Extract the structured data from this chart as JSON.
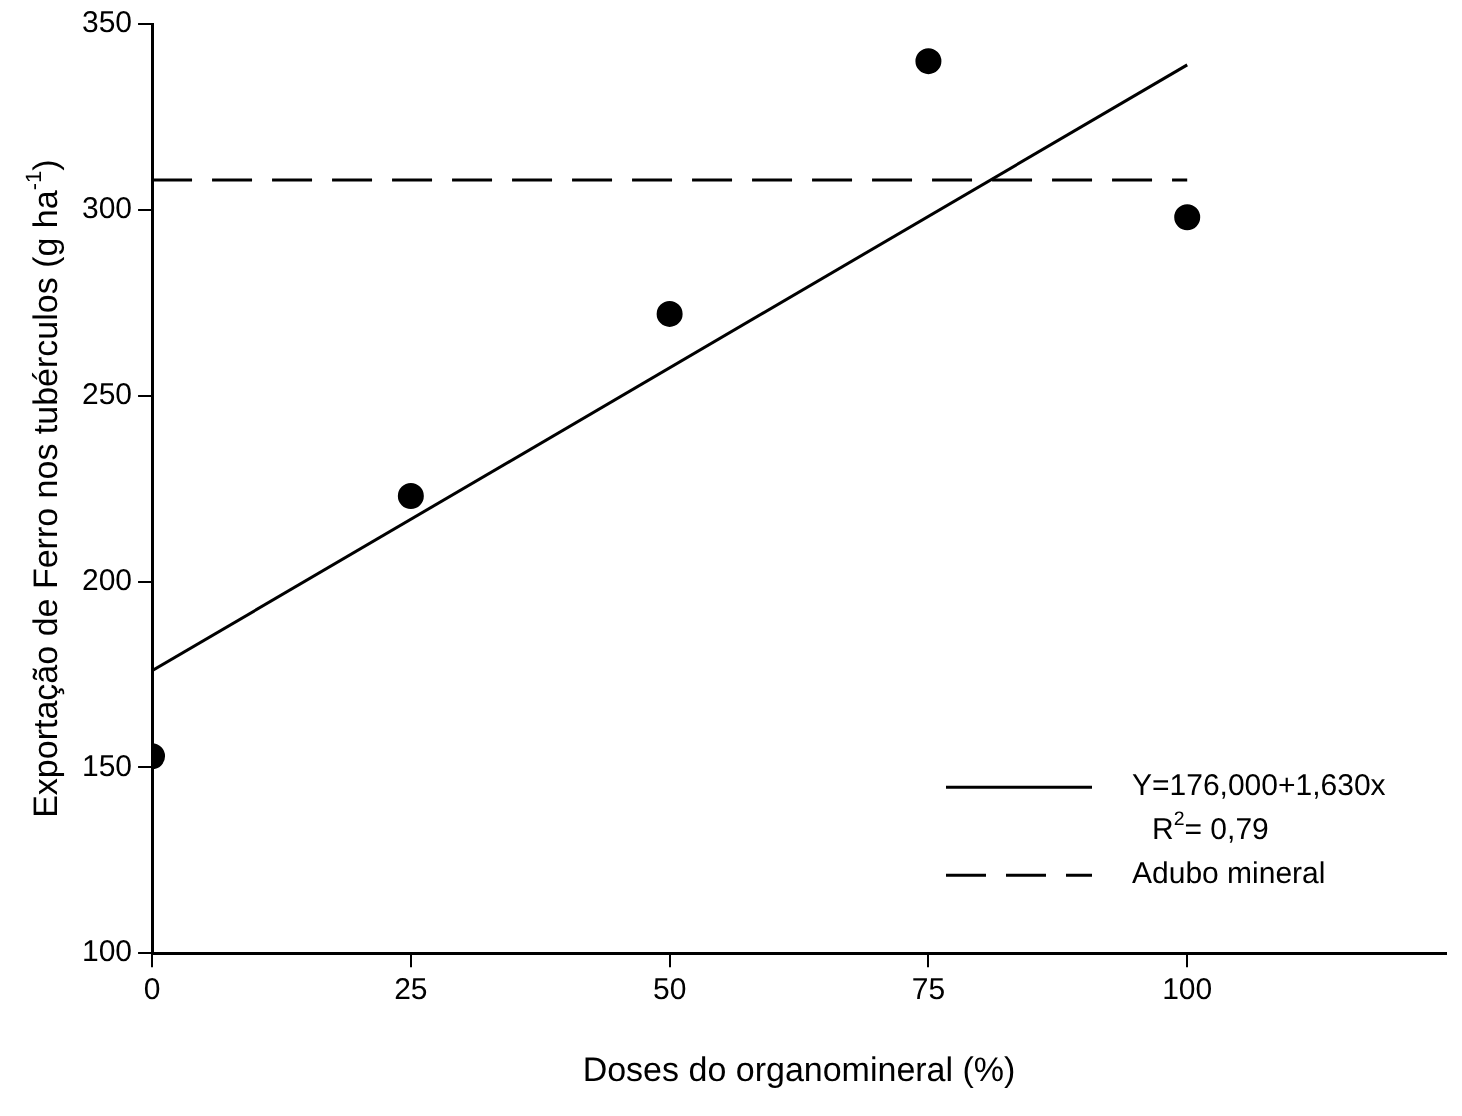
{
  "chart_data": {
    "type": "scatter",
    "xlabel": "Doses do organomineral (%)",
    "ylabel": "Exportação de Ferro nos tubérculos (g ha$^{-1}$)",
    "xlim": [
      0,
      125
    ],
    "xticks": [
      0,
      25,
      50,
      75,
      100
    ],
    "ylim": [
      100,
      350
    ],
    "yticks": [
      100,
      150,
      200,
      250,
      300,
      350
    ],
    "grid": false,
    "legend": "bottom right",
    "marker": "circle",
    "series": [
      {
        "type": "scatter",
        "color": "#000000",
        "x": [
          0,
          25,
          50,
          75,
          100
        ],
        "values": [
          153,
          223,
          272,
          340,
          298
        ]
      },
      {
        "type": "line",
        "name": "Y=176,000+1,630x\nR$^{2}$= 0,79",
        "color": "#000000",
        "line_style": "solid",
        "marker": "none",
        "x": [
          0,
          100
        ],
        "values": [
          176,
          339
        ]
      },
      {
        "type": "line",
        "name": "Adubo mineral",
        "color": "#000000",
        "line_style": "dashed",
        "marker": "none",
        "x": [
          0,
          100
        ],
        "values": [
          308,
          308
        ]
      }
    ]
  }
}
